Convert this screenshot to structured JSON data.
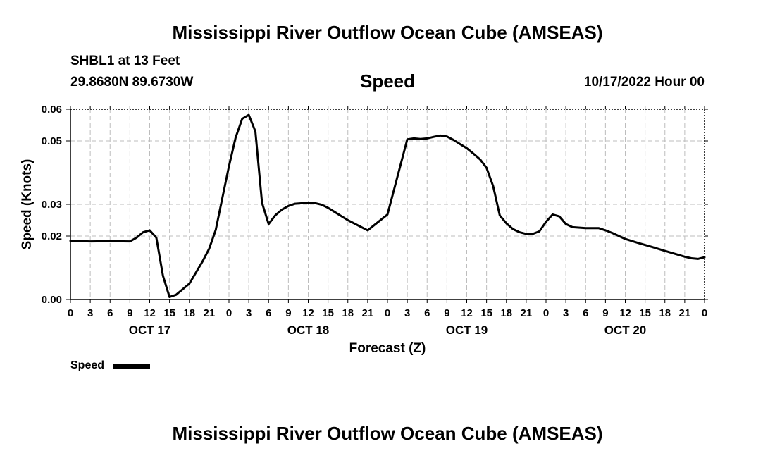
{
  "page": {
    "title_top": "Mississippi River Outflow Ocean Cube (AMSEAS)",
    "title_bottom": "Mississippi River Outflow Ocean Cube (AMSEAS)",
    "station": "SHBL1 at 13 Feet",
    "coords": "29.8680N  89.6730W",
    "plot_title": "Speed",
    "datetime": "10/17/2022 Hour 00",
    "legend_label": "Speed"
  },
  "chart_data": {
    "type": "line",
    "xlabel": "Forecast (Z)",
    "ylabel": "Speed (Knots)",
    "ylim": [
      0,
      0.06
    ],
    "yticks": [
      0,
      0.02,
      0.03,
      0.05,
      0.06
    ],
    "ytick_labels": [
      "0.00",
      "0.02",
      "0.03",
      "0.05",
      "0.06"
    ],
    "xlim_hours": [
      0,
      96
    ],
    "xtick_labels": [
      "0",
      "3",
      "6",
      "9",
      "12",
      "15",
      "18",
      "21",
      "0",
      "3",
      "6",
      "9",
      "12",
      "15",
      "18",
      "21",
      "0",
      "3",
      "6",
      "9",
      "12",
      "15",
      "18",
      "21",
      "0",
      "3",
      "6",
      "9",
      "12",
      "15",
      "18",
      "21",
      "0"
    ],
    "day_labels": [
      {
        "label": "OCT 17",
        "hour": 12
      },
      {
        "label": "OCT 18",
        "hour": 36
      },
      {
        "label": "OCT 19",
        "hour": 60
      },
      {
        "label": "OCT 20",
        "hour": 84
      }
    ],
    "grid": true,
    "legend_placement": "bottom-left",
    "series": [
      {
        "name": "Speed",
        "color": "#000000",
        "x": [
          0,
          3,
          6,
          9,
          10,
          11,
          12,
          13,
          14,
          15,
          16,
          18,
          20,
          21,
          22,
          23,
          24,
          25,
          26,
          27,
          28,
          29,
          30,
          31,
          32,
          33,
          34,
          36,
          37,
          38,
          39,
          40,
          42,
          45,
          48,
          51,
          52,
          53,
          54,
          55,
          56,
          57,
          58,
          59,
          60,
          61,
          62,
          63,
          64,
          65,
          66,
          67,
          68,
          69,
          70,
          71,
          72,
          73,
          74,
          75,
          76,
          78,
          80,
          81,
          82,
          84,
          86,
          88,
          90,
          92,
          93,
          94,
          95,
          96
        ],
        "y": [
          0.0185,
          0.0183,
          0.0184,
          0.0183,
          0.0195,
          0.0212,
          0.0218,
          0.0195,
          0.0075,
          0.0008,
          0.0015,
          0.005,
          0.012,
          0.016,
          0.022,
          0.032,
          0.042,
          0.051,
          0.057,
          0.0582,
          0.053,
          0.0305,
          0.0238,
          0.0265,
          0.0283,
          0.0295,
          0.0302,
          0.0305,
          0.0304,
          0.0299,
          0.0289,
          0.0276,
          0.025,
          0.0218,
          0.0268,
          0.0505,
          0.0508,
          0.0506,
          0.0508,
          0.0513,
          0.0517,
          0.0514,
          0.0503,
          0.049,
          0.0477,
          0.046,
          0.0442,
          0.0415,
          0.0357,
          0.0265,
          0.024,
          0.0222,
          0.0212,
          0.0207,
          0.0207,
          0.0215,
          0.0245,
          0.0268,
          0.0262,
          0.0238,
          0.0228,
          0.0225,
          0.0225,
          0.0218,
          0.021,
          0.0191,
          0.0178,
          0.0166,
          0.0153,
          0.0141,
          0.0135,
          0.013,
          0.0128,
          0.0133
        ]
      }
    ]
  }
}
